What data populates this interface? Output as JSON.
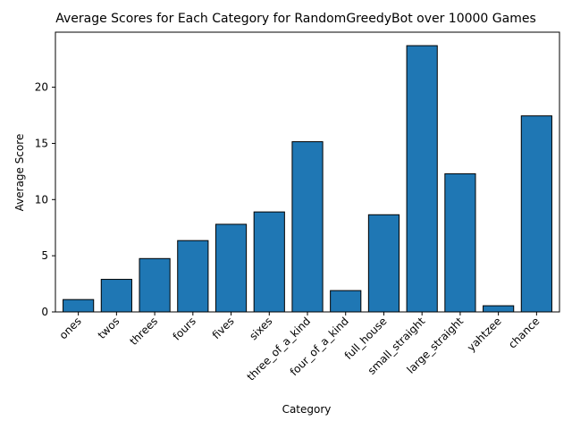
{
  "chart_data": {
    "type": "bar",
    "title": "Average Scores for Each Category for RandomGreedyBot over 10000 Games",
    "xlabel": "Category",
    "ylabel": "Average Score",
    "categories": [
      "ones",
      "twos",
      "threes",
      "fours",
      "fives",
      "sixes",
      "three_of_a_kind",
      "four_of_a_kind",
      "full_house",
      "small_straight",
      "large_straight",
      "yahtzee",
      "chance"
    ],
    "values": [
      1.1,
      2.9,
      4.75,
      6.35,
      7.8,
      8.9,
      15.15,
      1.9,
      8.65,
      23.7,
      12.3,
      0.55,
      17.45
    ],
    "ylim": [
      0,
      24.9
    ],
    "yticks": [
      0,
      5,
      10,
      15,
      20
    ],
    "grid": false,
    "bar_color": "#1f77b4",
    "edge_color": "#000000"
  }
}
